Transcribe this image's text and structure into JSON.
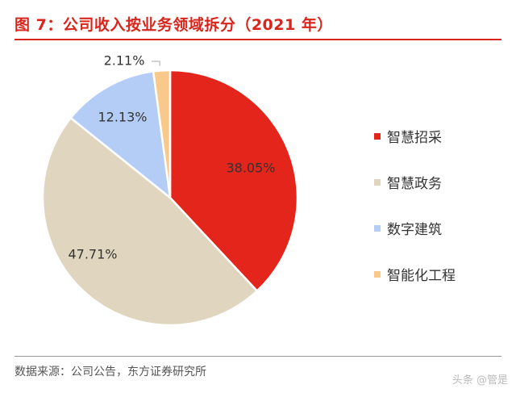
{
  "header": {
    "title": "图 7：公司收入按业务领域拆分（2021 年）"
  },
  "footer": {
    "source": "数据来源：公司公告，东方证券研究所",
    "watermark": "头条 @管是"
  },
  "chart_data": {
    "type": "pie",
    "title": "图 7：公司收入按业务领域拆分（2021 年）",
    "legend_position": "right",
    "start_angle_deg": 0,
    "direction": "clockwise",
    "slices": [
      {
        "label": "智慧招采",
        "value": 38.05,
        "value_label": "38.05%",
        "color": "#e3251b"
      },
      {
        "label": "智慧政务",
        "value": 47.71,
        "value_label": "47.71%",
        "color": "#e0d6bf"
      },
      {
        "label": "数字建筑",
        "value": 12.13,
        "value_label": "12.13%",
        "color": "#b4cdf7"
      },
      {
        "label": "智能化工程",
        "value": 2.11,
        "value_label": "2.11%",
        "color": "#f8c98a"
      }
    ]
  }
}
